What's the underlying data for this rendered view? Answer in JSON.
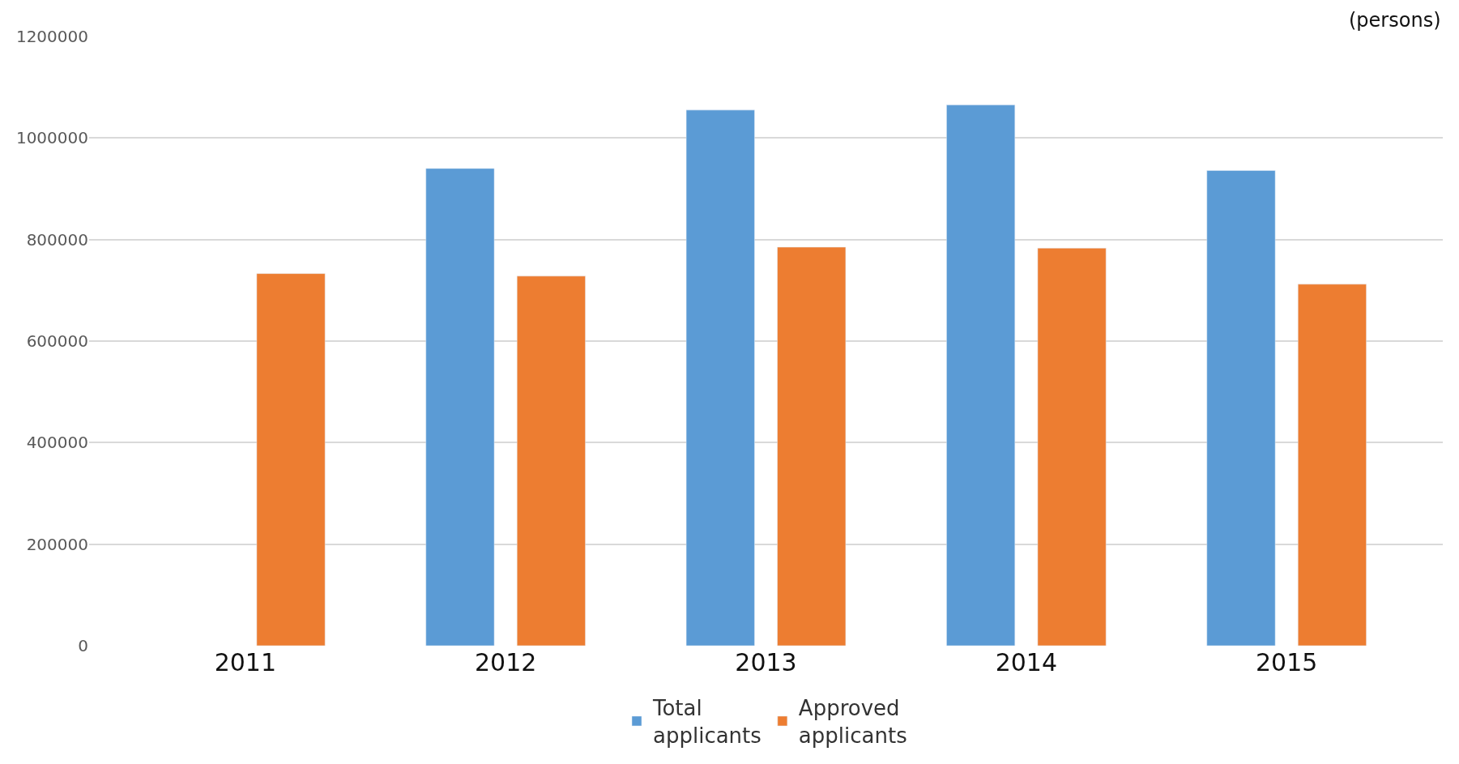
{
  "chart_data": {
    "type": "bar",
    "categories": [
      "2011",
      "2012",
      "2013",
      "2014",
      "2015"
    ],
    "series": [
      {
        "name": "Total applicants",
        "color": "#5b9bd5",
        "values": [
          null,
          940000,
          1055000,
          1065000,
          936000
        ]
      },
      {
        "name": "Approved applicants",
        "color": "#ed7d31",
        "values": [
          733000,
          728000,
          785000,
          783000,
          712000
        ]
      }
    ],
    "ylim": [
      0,
      1200000
    ],
    "yticks": [
      0,
      200000,
      400000,
      600000,
      800000,
      1000000,
      1200000
    ],
    "grid": "y",
    "legend": "bottom",
    "annotations": [
      "(persons)"
    ]
  }
}
